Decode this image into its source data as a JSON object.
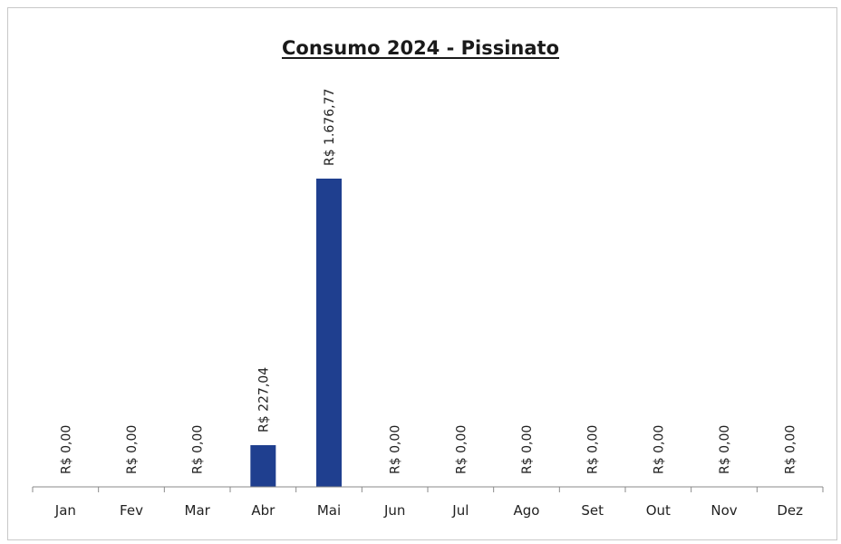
{
  "chart_data": {
    "type": "bar",
    "title": "Consumo 2024 - Pissinato",
    "xlabel": "",
    "ylabel": "",
    "categories": [
      "Jan",
      "Fev",
      "Mar",
      "Abr",
      "Mai",
      "Jun",
      "Jul",
      "Ago",
      "Set",
      "Out",
      "Nov",
      "Dez"
    ],
    "values": [
      0,
      0,
      0,
      227.04,
      1676.77,
      0,
      0,
      0,
      0,
      0,
      0,
      0
    ],
    "data_labels": [
      "R$ 0,00",
      "R$ 0,00",
      "R$ 0,00",
      "R$ 227,04",
      "R$ 1.676,77",
      "R$ 0,00",
      "R$ 0,00",
      "R$ 0,00",
      "R$ 0,00",
      "R$ 0,00",
      "R$ 0,00",
      "R$ 0,00"
    ],
    "bar_color": "#1f3f8f",
    "grid": false,
    "legend": "none",
    "y_axis_visible": false
  }
}
